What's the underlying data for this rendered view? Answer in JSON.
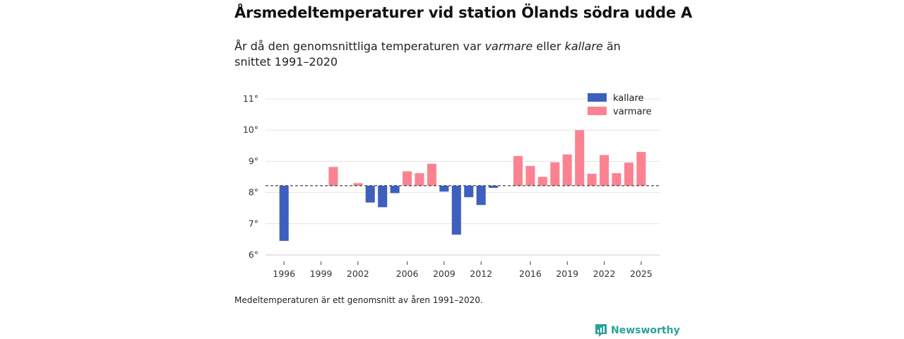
{
  "header": {
    "title": "Årsmedeltemperaturer vid station Ölands södra udde A",
    "subtitle_before": "År då den genomsnittliga temperaturen var ",
    "subtitle_em1": "varmare",
    "subtitle_mid": " eller ",
    "subtitle_em2": "kallare",
    "subtitle_after": " än snittet 1991–2020"
  },
  "footnote": "Medeltemperaturen är ett genomsnitt av åren 1991–2020.",
  "brand": {
    "name": "Newsworthy",
    "icon": "newsworthy-chart-icon",
    "color": "#2aa29a"
  },
  "chart_data": {
    "type": "bar",
    "baseline": 8.22,
    "ylim": [
      6,
      11
    ],
    "yticks": [
      6,
      7,
      8,
      9,
      10,
      11
    ],
    "ytick_labels": [
      "6°",
      "7°",
      "8°",
      "9°",
      "10°",
      "11°"
    ],
    "xlim": [
      1994.5,
      2026.5
    ],
    "xticks": [
      1996,
      1999,
      2002,
      2006,
      2009,
      2012,
      2016,
      2019,
      2022,
      2025
    ],
    "xtick_labels": [
      "1996",
      "1999",
      "2002",
      "2006",
      "2009",
      "2012",
      "2016",
      "2019",
      "2022",
      "2025"
    ],
    "colors": {
      "kallare": "#3f5fbf",
      "varmare": "#fb8391"
    },
    "legend": [
      {
        "key": "kallare",
        "label": "kallare"
      },
      {
        "key": "varmare",
        "label": "varmare"
      }
    ],
    "legend_position": "top-right",
    "data": [
      {
        "year": 1996,
        "value": 6.45
      },
      {
        "year": 2000,
        "value": 8.82
      },
      {
        "year": 2002,
        "value": 8.3
      },
      {
        "year": 2003,
        "value": 7.68
      },
      {
        "year": 2004,
        "value": 7.53
      },
      {
        "year": 2005,
        "value": 7.98
      },
      {
        "year": 2006,
        "value": 8.68
      },
      {
        "year": 2007,
        "value": 8.62
      },
      {
        "year": 2008,
        "value": 8.92
      },
      {
        "year": 2009,
        "value": 8.03
      },
      {
        "year": 2010,
        "value": 6.65
      },
      {
        "year": 2011,
        "value": 7.85
      },
      {
        "year": 2012,
        "value": 7.6
      },
      {
        "year": 2013,
        "value": 8.15
      },
      {
        "year": 2015,
        "value": 9.17
      },
      {
        "year": 2016,
        "value": 8.85
      },
      {
        "year": 2017,
        "value": 8.5
      },
      {
        "year": 2018,
        "value": 8.97
      },
      {
        "year": 2019,
        "value": 9.22
      },
      {
        "year": 2020,
        "value": 10.0
      },
      {
        "year": 2021,
        "value": 8.6
      },
      {
        "year": 2022,
        "value": 9.2
      },
      {
        "year": 2023,
        "value": 8.62
      },
      {
        "year": 2024,
        "value": 8.96
      },
      {
        "year": 2025,
        "value": 9.3
      }
    ]
  }
}
